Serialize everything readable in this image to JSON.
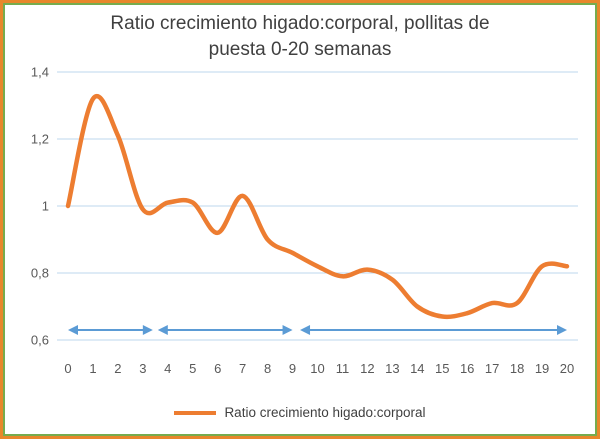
{
  "chart_data": {
    "type": "line",
    "title": "Ratio crecimiento higado:corporal, pollitas de puesta 0-20 semanas",
    "legend": "Ratio crecimiento higado:corporal",
    "xlabel": "",
    "ylabel": "",
    "x": [
      0,
      1,
      2,
      3,
      4,
      5,
      6,
      7,
      8,
      9,
      10,
      11,
      12,
      13,
      14,
      15,
      16,
      17,
      18,
      19,
      20
    ],
    "values": [
      1.0,
      1.32,
      1.21,
      0.99,
      1.01,
      1.01,
      0.92,
      1.03,
      0.9,
      0.86,
      0.82,
      0.79,
      0.81,
      0.78,
      0.7,
      0.67,
      0.68,
      0.71,
      0.71,
      0.82,
      0.82
    ],
    "ylim": [
      0.6,
      1.4
    ],
    "yticks": [
      {
        "value": 0.6,
        "label": "0,6"
      },
      {
        "value": 0.8,
        "label": "0,8"
      },
      {
        "value": 1,
        "label": "1"
      },
      {
        "value": 1.2,
        "label": "1,2"
      },
      {
        "value": 1.4,
        "label": "1,4"
      }
    ],
    "grid": "horizontal",
    "legend_position": "bottom",
    "smooth": true,
    "colors": {
      "line": "#ED7D31",
      "grid": "#BDD7EE",
      "axis_text": "#595959",
      "title_text": "#404040",
      "arrow": "#5B9BD5",
      "frame_outer": "#E8872B",
      "frame_inner": "#76AC4E"
    },
    "annotations": {
      "description": "three double-headed horizontal arrows marking phases",
      "arrows": [
        {
          "from_week": 0,
          "to_week": 3.4
        },
        {
          "from_week": 3.6,
          "to_week": 9.0
        },
        {
          "from_week": 9.3,
          "to_week": 20
        }
      ],
      "y_value": 0.63,
      "color": "#5B9BD5"
    }
  }
}
